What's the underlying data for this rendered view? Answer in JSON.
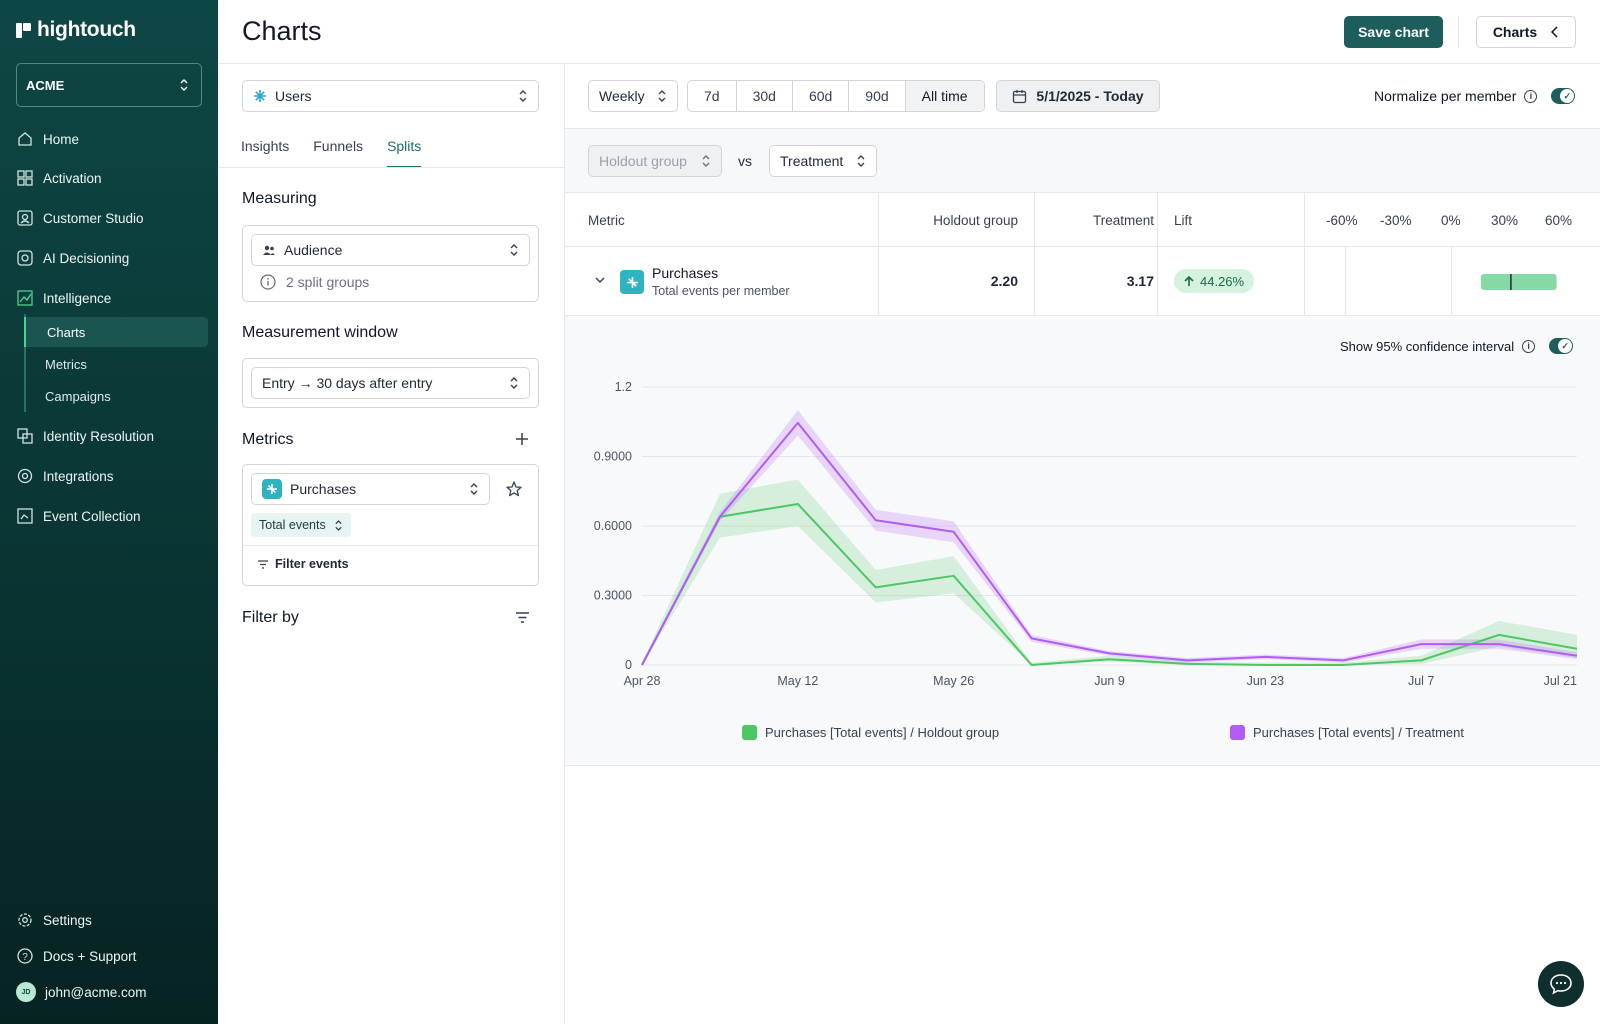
{
  "sidebar": {
    "brand": "hightouch",
    "workspace": "ACME",
    "nav": [
      {
        "label": "Home",
        "icon": "home-icon"
      },
      {
        "label": "Activation",
        "icon": "grid-icon"
      },
      {
        "label": "Customer Studio",
        "icon": "studio-icon"
      },
      {
        "label": "AI Decisioning",
        "icon": "ai-icon"
      },
      {
        "label": "Intelligence",
        "icon": "chart-icon"
      }
    ],
    "sub": [
      {
        "label": "Charts",
        "active": true
      },
      {
        "label": "Metrics"
      },
      {
        "label": "Campaigns"
      }
    ],
    "nav2": [
      {
        "label": "Identity Resolution",
        "icon": "identity-icon"
      },
      {
        "label": "Integrations",
        "icon": "integrations-icon"
      },
      {
        "label": "Event Collection",
        "icon": "event-icon"
      }
    ],
    "footer": {
      "settings": "Settings",
      "docs": "Docs + Support",
      "user": "john@acme.com",
      "initials": "JD"
    }
  },
  "header": {
    "title": "Charts",
    "save": "Save chart",
    "charts_btn": "Charts"
  },
  "config": {
    "parent_model": "Users",
    "tabs": [
      "Insights",
      "Funnels",
      "Splits"
    ],
    "active_tab": "Splits",
    "measuring_title": "Measuring",
    "measuring_value": "Audience",
    "split_groups": "2 split groups",
    "window_title": "Measurement window",
    "window_value": "Entry → 30 days after entry",
    "metrics_title": "Metrics",
    "metric_name": "Purchases",
    "metric_aggregation": "Total events",
    "filter_events": "Filter events",
    "filter_by": "Filter by"
  },
  "toolbar": {
    "granularity": "Weekly",
    "ranges": [
      "7d",
      "30d",
      "60d",
      "90d",
      "All time"
    ],
    "active_range": "All time",
    "date": "5/1/2025 - Today",
    "normalize": "Normalize per member",
    "normalize_on": true
  },
  "compare": {
    "baseline": "Holdout group",
    "vs": "vs",
    "treatment": "Treatment"
  },
  "table": {
    "headers": {
      "metric": "Metric",
      "holdout": "Holdout group",
      "treatment": "Treatment",
      "lift": "Lift"
    },
    "lift_ticks": [
      "-60%",
      "-30%",
      "0%",
      "30%",
      "60%"
    ],
    "row": {
      "name": "Purchases",
      "sub": "Total events per member",
      "holdout": "2.20",
      "treatment": "3.17",
      "lift": "44.26%",
      "lift_value": 44.26,
      "lift_ci": [
        17,
        60
      ]
    }
  },
  "chart_toggle": {
    "label": "Show 95% confidence interval",
    "on": true
  },
  "chart_data": {
    "type": "line",
    "x": [
      "Apr 28",
      "May 5",
      "May 12",
      "May 19",
      "May 26",
      "Jun 2",
      "Jun 9",
      "Jun 16",
      "Jun 23",
      "Jun 30",
      "Jul 7",
      "Jul 14",
      "Jul 21"
    ],
    "x_tick_labels": [
      "Apr 28",
      "May 12",
      "May 26",
      "Jun 9",
      "Jun 23",
      "Jul 7",
      "Jul 21"
    ],
    "y_ticks": [
      "0",
      "0.3000",
      "0.6000",
      "0.9000",
      "1.2"
    ],
    "ylim": [
      0,
      1.2
    ],
    "series": [
      {
        "name": "Purchases [Total events] / Holdout group",
        "color": "#4cc764",
        "values": [
          0.0,
          0.64,
          0.695,
          0.335,
          0.385,
          0.0,
          0.025,
          0.005,
          0.0,
          0.0,
          0.02,
          0.13,
          0.07
        ],
        "ci_low": [
          0.0,
          0.55,
          0.6,
          0.27,
          0.31,
          0.0,
          0.015,
          0.0,
          0.0,
          0.0,
          0.005,
          0.08,
          0.03
        ],
        "ci_high": [
          0.01,
          0.74,
          0.8,
          0.41,
          0.47,
          0.01,
          0.04,
          0.015,
          0.01,
          0.01,
          0.04,
          0.19,
          0.13
        ]
      },
      {
        "name": "Purchases [Total events] / Treatment",
        "color": "#b25cf6",
        "values": [
          0.0,
          0.64,
          1.045,
          0.625,
          0.575,
          0.115,
          0.05,
          0.02,
          0.035,
          0.02,
          0.09,
          0.09,
          0.04
        ],
        "ci_low": [
          0.0,
          0.62,
          0.99,
          0.58,
          0.53,
          0.1,
          0.04,
          0.01,
          0.025,
          0.01,
          0.07,
          0.07,
          0.025
        ],
        "ci_high": [
          0.01,
          0.66,
          1.1,
          0.67,
          0.62,
          0.13,
          0.06,
          0.03,
          0.045,
          0.03,
          0.11,
          0.11,
          0.055
        ]
      }
    ],
    "legend_position": "bottom",
    "grid": true
  }
}
